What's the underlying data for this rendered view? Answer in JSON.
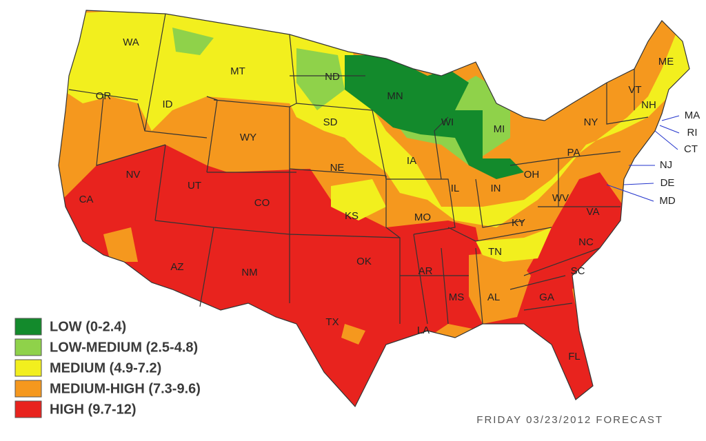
{
  "legend": [
    {
      "label": "LOW (0-2.4)",
      "color": "#138a2c"
    },
    {
      "label": "LOW-MEDIUM (2.5-4.8)",
      "color": "#8fd24a"
    },
    {
      "label": "MEDIUM (4.9-7.2)",
      "color": "#f2ef1e"
    },
    {
      "label": "MEDIUM-HIGH (7.3-9.6)",
      "color": "#f5981e"
    },
    {
      "label": "HIGH (9.7-12)",
      "color": "#e8231e"
    }
  ],
  "states": [
    "WA",
    "OR",
    "CA",
    "ID",
    "NV",
    "MT",
    "WY",
    "UT",
    "AZ",
    "CO",
    "NM",
    "ND",
    "SD",
    "NE",
    "KS",
    "OK",
    "TX",
    "MN",
    "IA",
    "MO",
    "AR",
    "LA",
    "WI",
    "IL",
    "MI",
    "IN",
    "KY",
    "TN",
    "MS",
    "AL",
    "OH",
    "WV",
    "VA",
    "NC",
    "SC",
    "GA",
    "FL",
    "PA",
    "NY",
    "VT",
    "NH",
    "ME",
    "MA",
    "RI",
    "CT",
    "NJ",
    "DE",
    "MD"
  ],
  "footer": "FRIDAY 03/23/2012 FORECAST"
}
